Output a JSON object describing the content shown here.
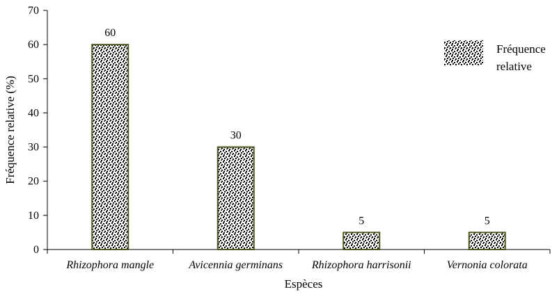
{
  "chart_data": {
    "type": "bar",
    "title": "",
    "xlabel": "Espèces",
    "ylabel": "Fréquence relative  (%)",
    "categories": [
      "Rhizophora mangle",
      "Avicennia germinans",
      "Rhizophora harrisonii",
      "Vernonia colorata"
    ],
    "values": [
      60,
      30,
      5,
      5
    ],
    "data_labels": [
      "60",
      "30",
      "5",
      "5"
    ],
    "ylim": [
      0,
      70
    ],
    "yticks": [
      0,
      10,
      20,
      30,
      40,
      50,
      60,
      70
    ],
    "ytick_labels": [
      "0",
      "10",
      "20",
      "30",
      "40",
      "50",
      "60",
      "70"
    ],
    "grid": false,
    "legend": {
      "placement": "top-right",
      "lines": [
        "Fréquence",
        "relative"
      ]
    },
    "colors": {
      "bar_outline": "#4a5a1e",
      "bar_pattern_fg": "#000000",
      "bar_pattern_bg": "#ffffff",
      "axis": "#000000"
    }
  }
}
